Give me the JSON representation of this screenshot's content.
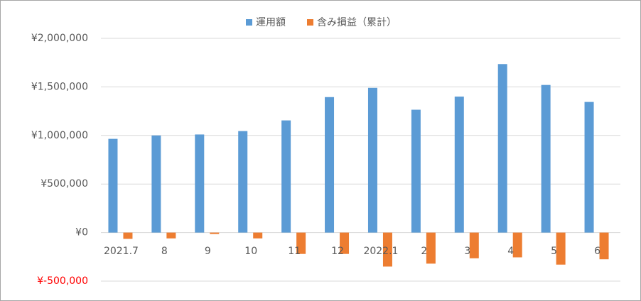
{
  "chart_data": {
    "type": "bar",
    "categories": [
      "2021.7",
      "8",
      "9",
      "10",
      "11",
      "12",
      "2022.1",
      "2",
      "3",
      "4",
      "5",
      "6"
    ],
    "series": [
      {
        "name": "運用額",
        "color": "#5b9bd5",
        "values": [
          965000,
          1000000,
          1010000,
          1045000,
          1155000,
          1395000,
          1490000,
          1265000,
          1400000,
          1735000,
          1520000,
          1345000
        ]
      },
      {
        "name": "含み損益（累計）",
        "color": "#ed7d31",
        "values": [
          -65000,
          -60000,
          -15000,
          -60000,
          -220000,
          -220000,
          -350000,
          -320000,
          -265000,
          -255000,
          -330000,
          -275000
        ]
      }
    ],
    "ylim": [
      -500000,
      2000000
    ],
    "yticks": [
      {
        "value": -500000,
        "label": "¥-500,000"
      },
      {
        "value": 0,
        "label": "¥0"
      },
      {
        "value": 500000,
        "label": "¥500,000"
      },
      {
        "value": 1000000,
        "label": "¥1,000,000"
      },
      {
        "value": 1500000,
        "label": "¥1,500,000"
      },
      {
        "value": 2000000,
        "label": "¥2,000,000"
      }
    ],
    "negative_tick_color": "#ff0000",
    "grid": true,
    "legend": "top"
  }
}
